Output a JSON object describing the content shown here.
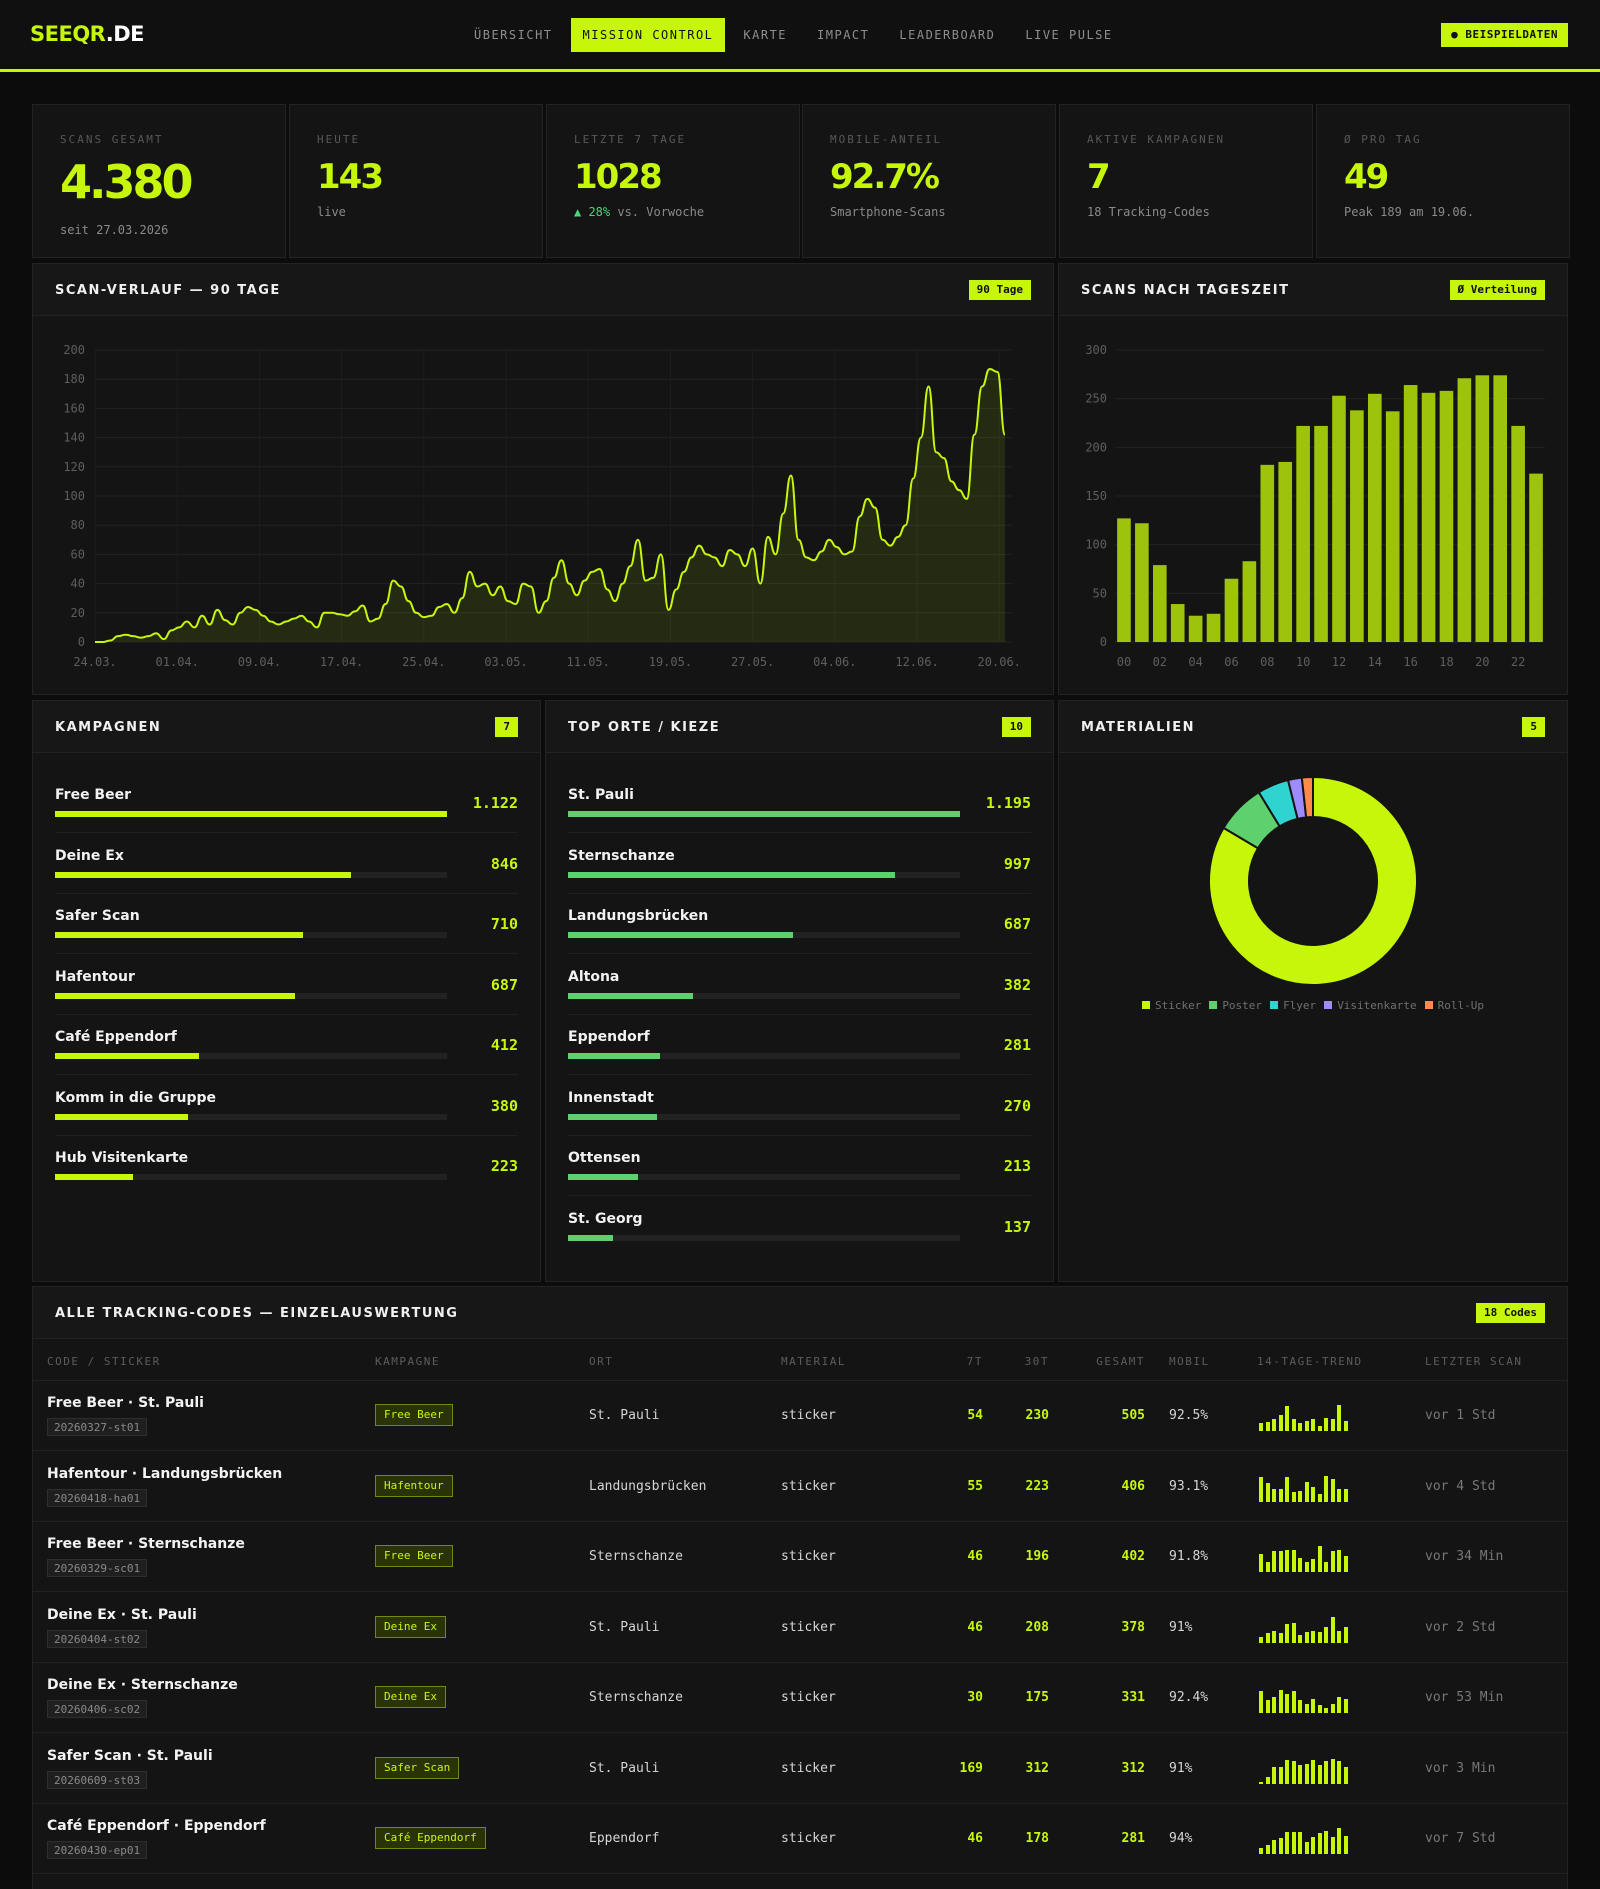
{
  "nav": {
    "logo_main": "SEEQR",
    "logo_tld": ".DE",
    "tabs": [
      {
        "label": "ÜBERSICHT",
        "active": false
      },
      {
        "label": "MISSION CONTROL",
        "active": true
      },
      {
        "label": "KARTE",
        "active": false
      },
      {
        "label": "IMPACT",
        "active": false
      },
      {
        "label": "LEADERBOARD",
        "active": false
      },
      {
        "label": "LIVE PULSE",
        "active": false
      }
    ],
    "demo_badge": "● BEISPIELDATEN"
  },
  "colors": {
    "accent": "#c6f70b",
    "green": "#5fd06e",
    "bg": "#0c0c0c",
    "panel": "#141414"
  },
  "kpis": [
    {
      "label": "SCANS GESAMT",
      "value": "4.380",
      "sub": "seit 27.03.2026"
    },
    {
      "label": "HEUTE",
      "value": "143",
      "sub": "live"
    },
    {
      "label": "LETZTE 7 TAGE",
      "value": "1028",
      "sub_delta": "▲ 28%",
      "sub": " vs. Vorwoche"
    },
    {
      "label": "MOBILE-ANTEIL",
      "value": "92.7%",
      "sub": "Smartphone-Scans"
    },
    {
      "label": "AKTIVE KAMPAGNEN",
      "value": "7",
      "sub": "18 Tracking-Codes"
    },
    {
      "label": "Ø PRO TAG",
      "value": "49",
      "sub": "Peak 189 am 19.06."
    }
  ],
  "scan_panel": {
    "title": "SCAN-VERLAUF — 90 TAGE",
    "badge": "90 Tage"
  },
  "hour_panel": {
    "title": "SCANS NACH TAGESZEIT",
    "badge": "Ø Verteilung"
  },
  "chart_data": [
    {
      "type": "line",
      "title": "SCAN-VERLAUF — 90 TAGE",
      "ylim": [
        0,
        200
      ],
      "y_ticks": [
        0,
        20,
        40,
        60,
        80,
        100,
        120,
        140,
        160,
        180,
        200
      ],
      "x_ticks": [
        "24.03.",
        "01.04.",
        "09.04.",
        "17.04.",
        "25.04.",
        "03.05.",
        "11.05.",
        "19.05.",
        "27.05.",
        "04.06.",
        "12.06.",
        "20.06."
      ],
      "grid": true,
      "area_fill": true,
      "values": [
        0,
        0,
        1,
        4,
        5,
        4,
        3,
        4,
        6,
        2,
        8,
        10,
        14,
        10,
        18,
        12,
        22,
        15,
        12,
        20,
        24,
        22,
        18,
        14,
        12,
        14,
        16,
        18,
        14,
        10,
        20,
        20,
        19,
        18,
        21,
        25,
        14,
        16,
        26,
        42,
        38,
        28,
        20,
        17,
        18,
        24,
        26,
        20,
        30,
        48,
        38,
        40,
        32,
        38,
        28,
        26,
        40,
        38,
        20,
        28,
        44,
        56,
        40,
        32,
        42,
        48,
        50,
        36,
        28,
        40,
        52,
        70,
        42,
        44,
        60,
        22,
        36,
        48,
        58,
        66,
        60,
        58,
        52,
        63,
        60,
        52,
        64,
        40,
        72,
        60,
        88,
        114,
        70,
        58,
        56,
        62,
        70,
        65,
        60,
        62,
        86,
        98,
        92,
        70,
        66,
        72,
        80,
        112,
        140,
        175,
        130,
        126,
        110,
        104,
        98,
        142,
        175,
        187,
        185,
        142
      ],
      "x_dates_note_first": "24.03.",
      "x_dates_note_last": "20.06."
    },
    {
      "type": "bar",
      "title": "SCANS NACH TAGESZEIT",
      "categories": [
        "00",
        "01",
        "02",
        "03",
        "04",
        "05",
        "06",
        "07",
        "08",
        "09",
        "10",
        "11",
        "12",
        "13",
        "14",
        "15",
        "16",
        "17",
        "18",
        "19",
        "20",
        "21",
        "22",
        "23"
      ],
      "x_tick_labels": [
        "00",
        "02",
        "04",
        "06",
        "08",
        "10",
        "12",
        "14",
        "16",
        "18",
        "20",
        "22"
      ],
      "values": [
        127,
        122,
        79,
        39,
        27,
        29,
        65,
        83,
        182,
        185,
        222,
        222,
        253,
        238,
        255,
        237,
        264,
        256,
        258,
        271,
        274,
        274,
        222,
        173
      ],
      "ylim": [
        0,
        300
      ],
      "y_ticks": [
        0,
        50,
        100,
        150,
        200,
        250,
        300
      ],
      "grid": true
    },
    {
      "type": "pie",
      "title": "MATERIALIEN",
      "labels": [
        "Sticker",
        "Poster",
        "Flyer",
        "Visitenkarte",
        "Roll-Up"
      ],
      "values": [
        3659,
        339,
        213,
        94,
        75
      ],
      "colors": [
        "#c6f70b",
        "#5fd06e",
        "#2fd3cf",
        "#9d8cff",
        "#ff8a4c"
      ],
      "legend": "bottom"
    }
  ],
  "campaigns": {
    "title": "KAMPAGNEN",
    "badge": "7",
    "items": [
      {
        "name": "Free Beer",
        "value": "1.122",
        "num": 1122
      },
      {
        "name": "Deine Ex",
        "value": "846",
        "num": 846
      },
      {
        "name": "Safer Scan",
        "value": "710",
        "num": 710
      },
      {
        "name": "Hafentour",
        "value": "687",
        "num": 687
      },
      {
        "name": "Café Eppendorf",
        "value": "412",
        "num": 412
      },
      {
        "name": "Komm in die Gruppe",
        "value": "380",
        "num": 380
      },
      {
        "name": "Hub Visitenkarte",
        "value": "223",
        "num": 223
      }
    ]
  },
  "places": {
    "title": "TOP ORTE / KIEZE",
    "badge": "10",
    "items": [
      {
        "name": "St. Pauli",
        "value": "1.195",
        "num": 1195
      },
      {
        "name": "Sternschanze",
        "value": "997",
        "num": 997
      },
      {
        "name": "Landungsbrücken",
        "value": "687",
        "num": 687
      },
      {
        "name": "Altona",
        "value": "382",
        "num": 382
      },
      {
        "name": "Eppendorf",
        "value": "281",
        "num": 281
      },
      {
        "name": "Innenstadt",
        "value": "270",
        "num": 270
      },
      {
        "name": "Ottensen",
        "value": "213",
        "num": 213
      },
      {
        "name": "St. Georg",
        "value": "137",
        "num": 137
      }
    ]
  },
  "materials": {
    "title": "MATERIALIEN",
    "badge": "5"
  },
  "codes": {
    "title": "ALLE TRACKING-CODES — EINZELAUSWERTUNG",
    "badge": "18 Codes",
    "headers": [
      "CODE / STICKER",
      "KAMPAGNE",
      "ORT",
      "MATERIAL",
      "7T",
      "30T",
      "GESAMT",
      "MOBIL",
      "14-TAGE-TREND",
      "LETZTER SCAN"
    ],
    "rows": [
      {
        "name": "Free Beer · St. Pauli",
        "id": "20260327-st01",
        "campaign": "Free Beer",
        "place": "St. Pauli",
        "material": "sticker",
        "t7": "54",
        "t30": "230",
        "total": "505",
        "mobile": "92.5%",
        "last": "vor 1 Std",
        "trend": [
          0.3,
          0.35,
          0.45,
          0.6,
          0.95,
          0.45,
          0.3,
          0.4,
          0.45,
          0.2,
          0.5,
          0.45,
          1,
          0.4
        ]
      },
      {
        "name": "Hafentour · Landungsbrücken",
        "id": "20260418-ha01",
        "campaign": "Hafentour",
        "place": "Landungsbrücken",
        "material": "sticker",
        "t7": "55",
        "t30": "223",
        "total": "406",
        "mobile": "93.1%",
        "last": "vor 4 Std",
        "trend": [
          0.95,
          0.7,
          0.5,
          0.5,
          0.95,
          0.35,
          0.4,
          0.75,
          0.55,
          0.3,
          1,
          0.85,
          0.5,
          0.5
        ]
      },
      {
        "name": "Free Beer · Sternschanze",
        "id": "20260329-sc01",
        "campaign": "Free Beer",
        "place": "Sternschanze",
        "material": "sticker",
        "t7": "46",
        "t30": "196",
        "total": "402",
        "mobile": "91.8%",
        "last": "vor 34 Min",
        "trend": [
          0.7,
          0.4,
          0.8,
          0.8,
          0.85,
          0.85,
          0.55,
          0.4,
          0.5,
          1,
          0.4,
          0.8,
          0.85,
          0.6
        ]
      },
      {
        "name": "Deine Ex · St. Pauli",
        "id": "20260404-st02",
        "campaign": "Deine Ex",
        "place": "St. Pauli",
        "material": "sticker",
        "t7": "46",
        "t30": "208",
        "total": "378",
        "mobile": "91%",
        "last": "vor 2 Std",
        "trend": [
          0.2,
          0.35,
          0.45,
          0.35,
          0.7,
          0.75,
          0.3,
          0.4,
          0.45,
          0.4,
          0.6,
          1,
          0.45,
          0.6
        ]
      },
      {
        "name": "Deine Ex · Sternschanze",
        "id": "20260406-sc02",
        "campaign": "Deine Ex",
        "place": "Sternschanze",
        "material": "sticker",
        "t7": "30",
        "t30": "175",
        "total": "331",
        "mobile": "92.4%",
        "last": "vor 53 Min",
        "trend": [
          0.85,
          0.5,
          0.6,
          0.9,
          0.75,
          0.85,
          0.5,
          0.35,
          0.55,
          0.3,
          0.2,
          0.35,
          0.6,
          0.55
        ]
      },
      {
        "name": "Safer Scan · St. Pauli",
        "id": "20260609-st03",
        "campaign": "Safer Scan",
        "place": "St. Pauli",
        "material": "sticker",
        "t7": "169",
        "t30": "312",
        "total": "312",
        "mobile": "91%",
        "last": "vor 3 Min",
        "trend": [
          0.05,
          0.25,
          0.65,
          0.65,
          0.9,
          0.85,
          0.7,
          0.75,
          0.9,
          0.7,
          0.85,
          0.95,
          0.85,
          0.65
        ]
      },
      {
        "name": "Café Eppendorf · Eppendorf",
        "id": "20260430-ep01",
        "campaign": "Café Eppendorf",
        "place": "Eppendorf",
        "material": "sticker",
        "t7": "46",
        "t30": "178",
        "total": "281",
        "mobile": "94%",
        "last": "vor 7 Std",
        "trend": [
          0.25,
          0.35,
          0.55,
          0.6,
          0.85,
          0.85,
          0.85,
          0.45,
          0.65,
          0.8,
          0.9,
          0.65,
          1,
          0.7
        ]
      }
    ]
  }
}
